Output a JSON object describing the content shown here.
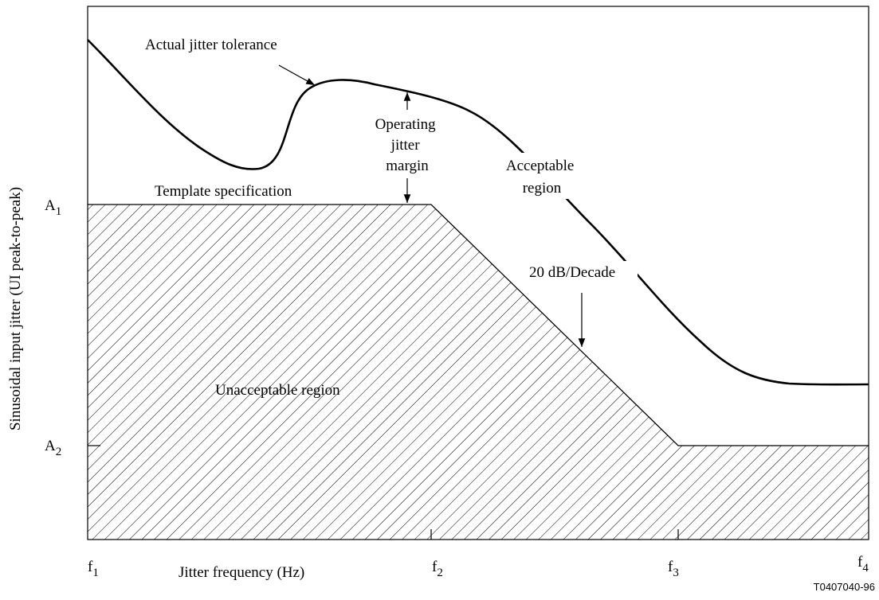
{
  "diagram": {
    "y_axis_label": "Sinusoidal input jitter (UI peak-to-peak)",
    "x_axis_label": "Jitter frequency (Hz)",
    "y_ticks": [
      {
        "base": "A",
        "sub": "1"
      },
      {
        "base": "A",
        "sub": "2"
      }
    ],
    "x_ticks": [
      {
        "base": "f",
        "sub": "1"
      },
      {
        "base": "f",
        "sub": "2"
      },
      {
        "base": "f",
        "sub": "3"
      },
      {
        "base": "f",
        "sub": "4"
      }
    ],
    "annotations": {
      "actual": "Actual jitter tolerance",
      "margin": [
        "Operating",
        "jitter",
        "margin"
      ],
      "acceptable": [
        "Acceptable",
        "region"
      ],
      "template": "Template specification",
      "slope": "20 dB/Decade",
      "unacceptable": "Unacceptable region"
    },
    "figure_code": "T0407040-96"
  }
}
